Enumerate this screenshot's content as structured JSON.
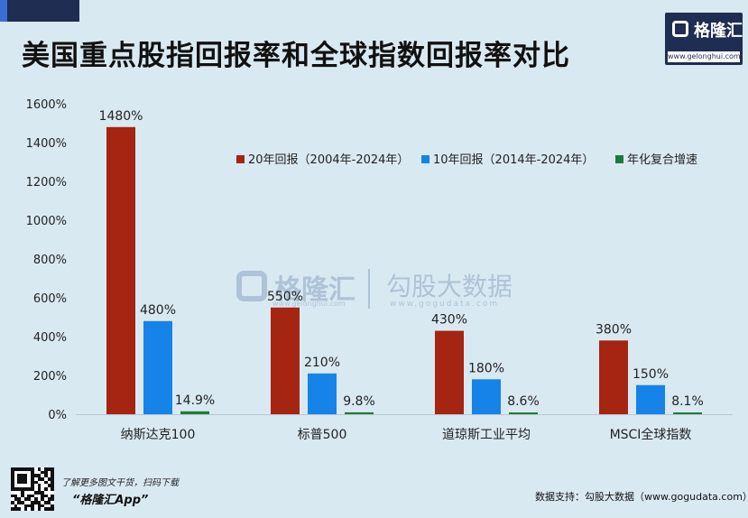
{
  "header": {
    "title": "美国重点股指回报率和全球指数回报率对比",
    "logo_text": "格隆汇",
    "logo_url": "www.gelonghui.com"
  },
  "watermark": {
    "brand": "格隆汇",
    "brand_url": "www.gelonghui.com",
    "data_brand": "勾股大数据",
    "data_url": "www.gogudata.com"
  },
  "footer": {
    "promo_line": "了解更多图文干货，扫码下载",
    "app_name": "“格隆汇App”",
    "source": "数据支持：勾股大数据（www.gogudata.com）"
  },
  "colors": {
    "series_20y": "#a52412",
    "series_10y": "#1583e8",
    "series_cagr": "#1e7a3a",
    "background": "#d9e9f2"
  },
  "chart_data": {
    "type": "bar",
    "title": "美国重点股指回报率和全球指数回报率对比",
    "categories": [
      "纳斯达克100",
      "标普500",
      "道琼斯工业平均",
      "MSCI全球指数"
    ],
    "series": [
      {
        "name": "20年回报（2004年-2024年）",
        "values": [
          1480,
          550,
          430,
          380
        ],
        "labels": [
          "1480%",
          "550%",
          "430%",
          "380%"
        ]
      },
      {
        "name": "10年回报（2014年-2024年）",
        "values": [
          480,
          210,
          180,
          150
        ],
        "labels": [
          "480%",
          "210%",
          "180%",
          "150%"
        ]
      },
      {
        "name": "年化复合增速",
        "values": [
          14.9,
          9.8,
          8.6,
          8.1
        ],
        "labels": [
          "14.9%",
          "9.8%",
          "8.6%",
          "8.1%"
        ]
      }
    ],
    "yticks": [
      "0%",
      "200%",
      "400%",
      "600%",
      "800%",
      "1000%",
      "1200%",
      "1400%",
      "1600%"
    ],
    "ylim": [
      0,
      1600
    ],
    "legend_position": "top-right",
    "grid": false
  }
}
